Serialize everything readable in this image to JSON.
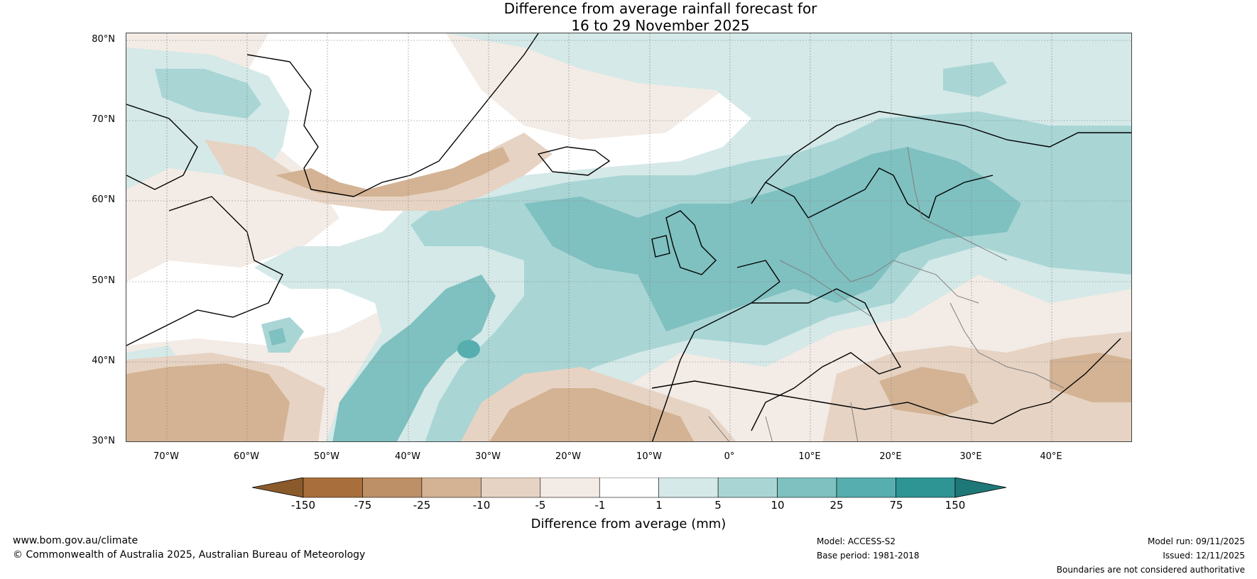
{
  "title_line1": "Difference from average rainfall forecast for",
  "title_line2": "16 to 29 November 2025",
  "lat_labels": [
    "80°N",
    "70°N",
    "60°N",
    "50°N",
    "40°N",
    "30°N"
  ],
  "lon_labels": [
    "70°W",
    "60°W",
    "50°W",
    "40°W",
    "30°W",
    "20°W",
    "10°W",
    "0°",
    "10°E",
    "20°E",
    "30°E",
    "40°E"
  ],
  "colorbar": {
    "ticks": [
      "-150",
      "-75",
      "-25",
      "-10",
      "-5",
      "-1",
      "1",
      "5",
      "10",
      "25",
      "75",
      "150"
    ],
    "colors": [
      "#8b5a2b",
      "#a86f3d",
      "#be9067",
      "#d3b394",
      "#e6d3c3",
      "#f3ebe5",
      "#ffffff",
      "#d4e9e8",
      "#a9d5d5",
      "#7fc0c0",
      "#57aeae",
      "#2f9494",
      "#1f7878"
    ],
    "label": "Difference from average (mm)"
  },
  "footer": {
    "website": "www.bom.gov.au/climate",
    "copyright": "© Commonwealth of Australia 2025, Australian Bureau of Meteorology",
    "model": "Model: ACCESS-S2",
    "base_period": "Base period: 1981-2018",
    "model_run": "Model run: 09/11/2025",
    "issued": "Issued: 12/11/2025",
    "disclaimer": "Boundaries are not considered authoritative"
  },
  "map_colors": {
    "ocean_base": "#f3ebe5",
    "coast": "#000000",
    "border": "#808080",
    "grid": "#888888"
  }
}
